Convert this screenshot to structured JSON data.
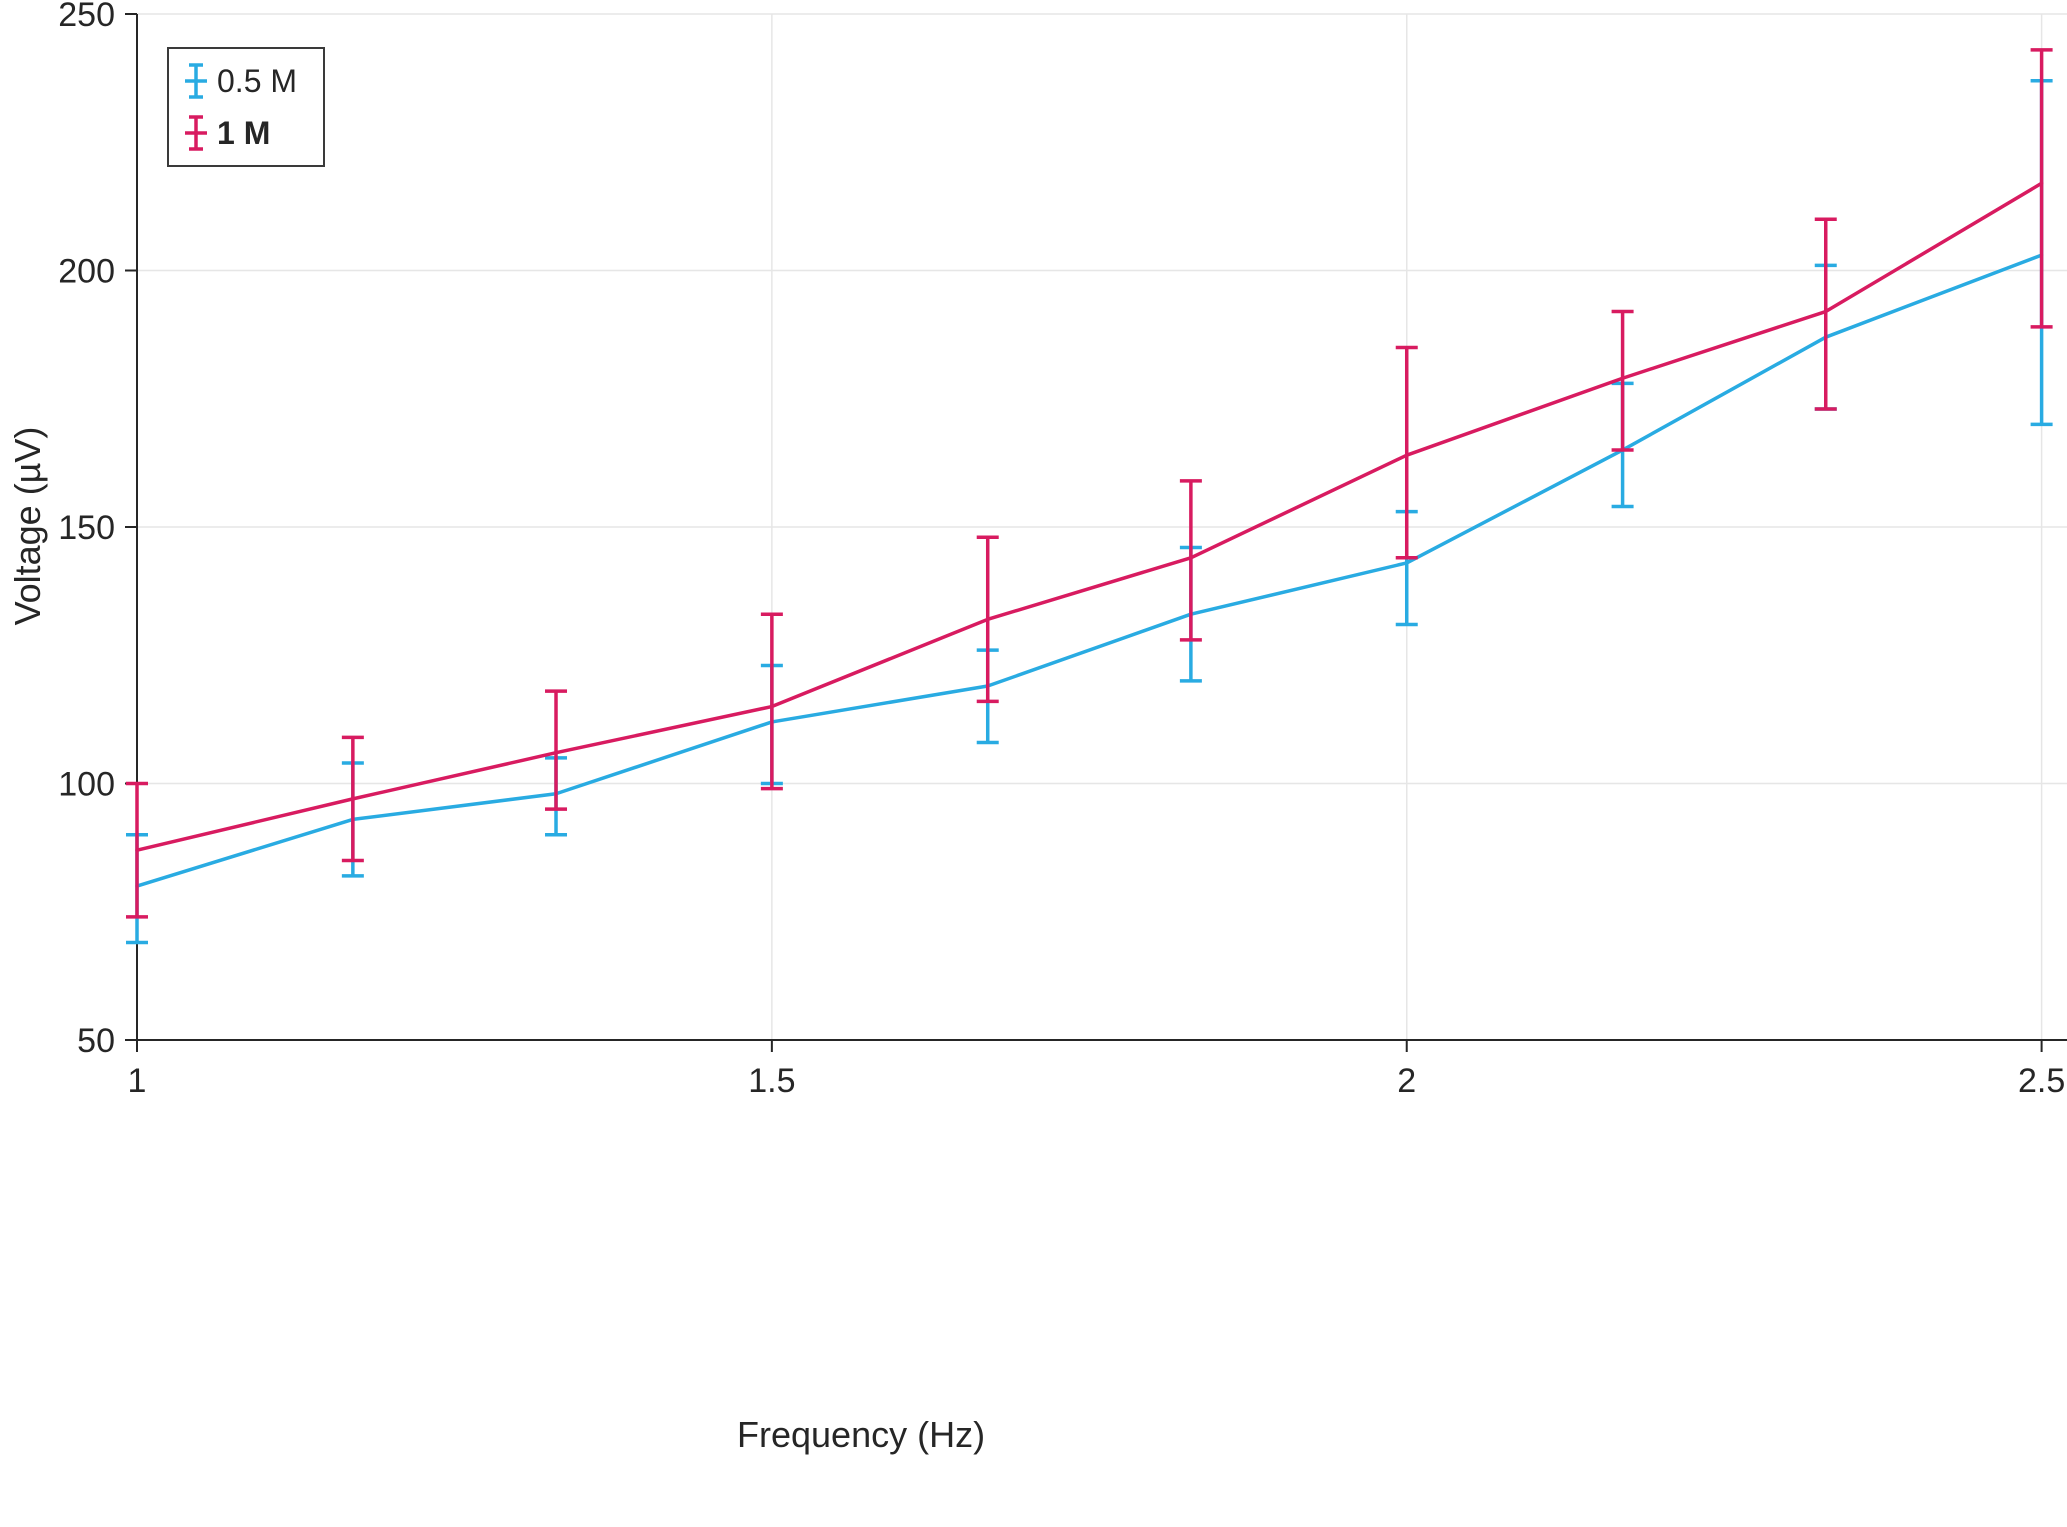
{
  "figure": {
    "xlabel": "Frequency (Hz)",
    "ylabel": "Voltage (µV)",
    "axis_color": "#262626",
    "grid_color": "#e6e6e6",
    "background": "#ffffff"
  },
  "legend": {
    "items": [
      {
        "label": "0.5 M",
        "color": "#29ABE2",
        "bold": false
      },
      {
        "label": "1 M",
        "color": "#D81B60",
        "bold": true
      }
    ]
  },
  "chart_data": {
    "type": "line",
    "title": "",
    "xlabel": "Frequency (Hz)",
    "ylabel": "Voltage (µV)",
    "x": [
      1,
      1.17,
      1.33,
      1.5,
      1.67,
      1.83,
      2,
      2.17,
      2.33,
      2.5
    ],
    "series": [
      {
        "name": "0.5 M",
        "color": "#29ABE2",
        "values": [
          80,
          93,
          98,
          112,
          119,
          133,
          143,
          165,
          187,
          203
        ],
        "err_low": [
          69,
          82,
          90,
          100,
          108,
          120,
          131,
          154,
          173,
          170
        ],
        "err_high": [
          90,
          104,
          105,
          123,
          126,
          146,
          153,
          178,
          201,
          237
        ]
      },
      {
        "name": "1 M",
        "color": "#D81B60",
        "values": [
          87,
          97,
          106,
          115,
          132,
          144,
          164,
          179,
          192,
          217
        ],
        "err_low": [
          74,
          85,
          95,
          99,
          116,
          128,
          144,
          165,
          173,
          189
        ],
        "err_high": [
          100,
          109,
          118,
          133,
          148,
          159,
          185,
          192,
          210,
          243
        ]
      }
    ],
    "xlim": [
      1,
      2.52
    ],
    "ylim": [
      50,
      250
    ],
    "xticks": [
      1,
      1.5,
      2,
      2.5
    ],
    "yticks": [
      50,
      100,
      150,
      200,
      250
    ],
    "grid": true,
    "error_bars": true,
    "legend_position": "top-left"
  }
}
